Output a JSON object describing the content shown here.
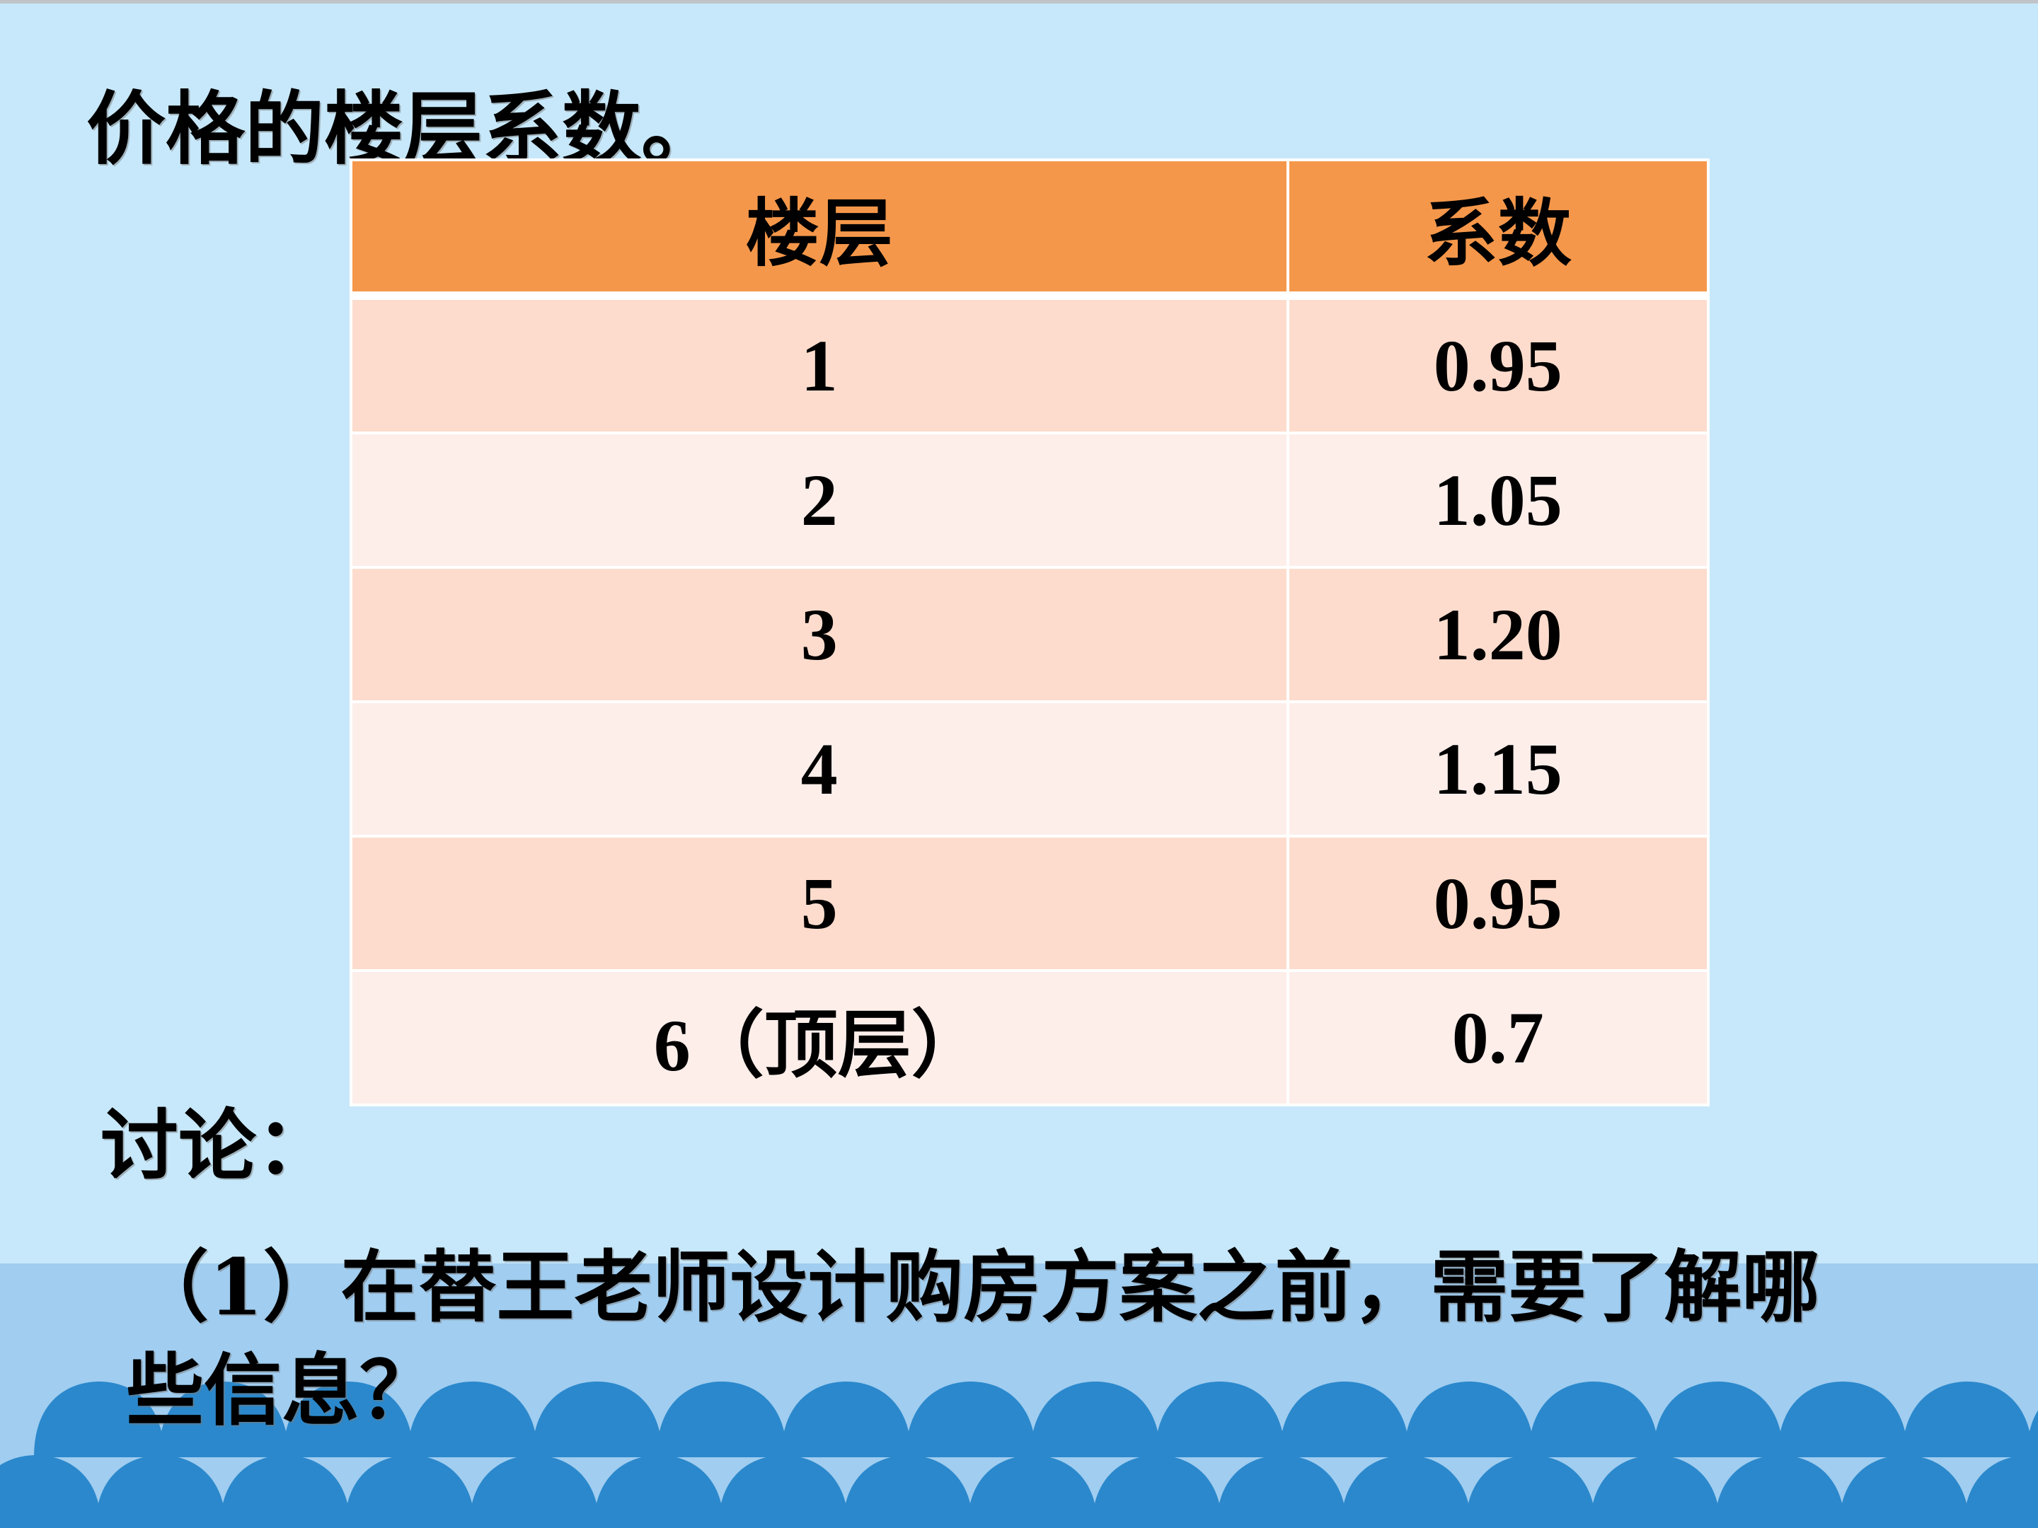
{
  "title": "价格的楼层系数。",
  "table": {
    "headers": [
      "楼层",
      "系数"
    ],
    "rows": [
      {
        "floor": "1",
        "coef": "0.95"
      },
      {
        "floor": "2",
        "coef": "1.05"
      },
      {
        "floor": "3",
        "coef": "1.20"
      },
      {
        "floor": "4",
        "coef": "1.15"
      },
      {
        "floor": "5",
        "coef": "0.95"
      },
      {
        "floor": "6（顶层）",
        "coef": "0.7"
      }
    ]
  },
  "discussion_label": "讨论：",
  "question_1_line1": "（1）在替王老师设计购房方案之前，需要了解哪",
  "question_1_line2": "些信息？",
  "colors": {
    "background": "#c7e8fa",
    "band": "#a0cdf0",
    "waves": "#2b88cc",
    "header": "#f5974a",
    "row_odd": "#fddccd",
    "row_even": "#fdeeea"
  }
}
